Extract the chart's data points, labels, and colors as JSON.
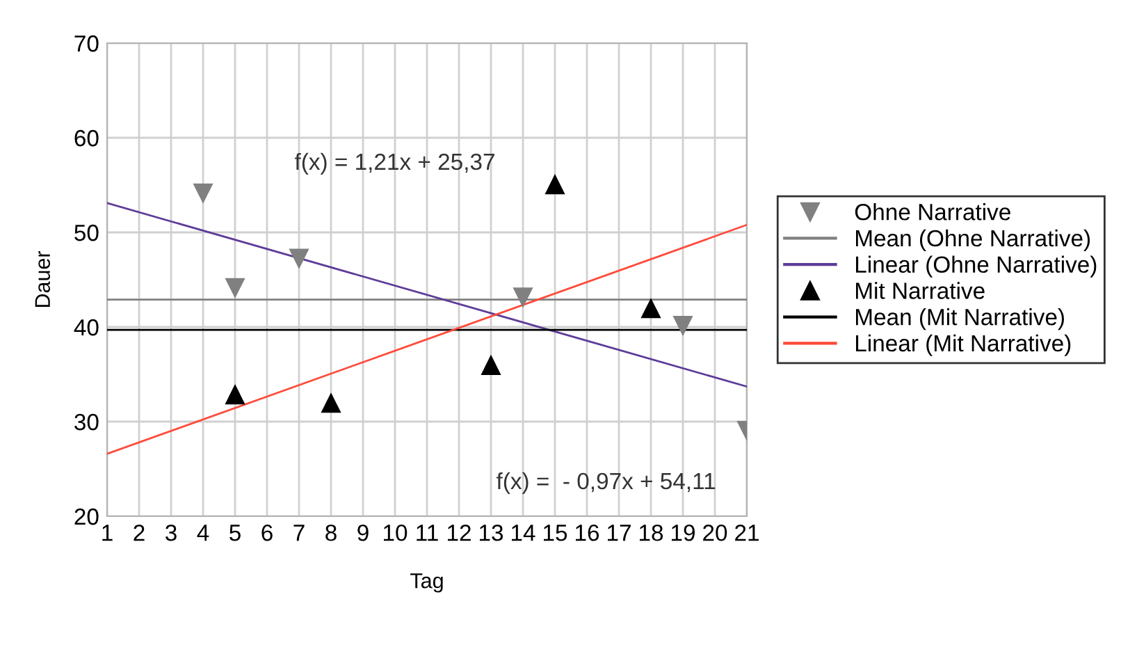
{
  "chart_data": {
    "type": "scatter",
    "xlabel": "Tag",
    "ylabel": "Dauer",
    "xlim": [
      1,
      21
    ],
    "xticks": [
      1,
      2,
      3,
      4,
      5,
      6,
      7,
      8,
      9,
      10,
      11,
      12,
      13,
      14,
      15,
      16,
      17,
      18,
      19,
      20,
      21
    ],
    "ylim": [
      20,
      70
    ],
    "yticks": [
      20,
      30,
      40,
      50,
      60,
      70
    ],
    "grid": true,
    "legend": "right",
    "series": [
      {
        "name": "Ohne Narrative",
        "marker": "triangle_down",
        "color": "#808080",
        "x": [
          4,
          5,
          7,
          14,
          19,
          21
        ],
        "values": [
          54.1,
          44.1,
          47.2,
          43.1,
          40.1,
          29.0
        ]
      },
      {
        "name": "Mean (Ohne Narrative)",
        "type": "line",
        "color": "#808080",
        "x": [
          1,
          21
        ],
        "values": [
          42.9,
          42.9
        ]
      },
      {
        "name": "Linear (Ohne Narrative)",
        "type": "line",
        "color": "#5e3c99",
        "x": [
          1,
          21
        ],
        "values": [
          53.1,
          33.7
        ]
      },
      {
        "name": "Mit Narrative",
        "marker": "triangle",
        "color": "#000000",
        "x": [
          5,
          8,
          13,
          15,
          18
        ],
        "values": [
          32.9,
          32.0,
          36.0,
          55.1,
          42.0
        ]
      },
      {
        "name": "Mean (Mit Narrative)",
        "type": "line",
        "color": "#000000",
        "x": [
          1,
          21
        ],
        "values": [
          39.7,
          39.7
        ]
      },
      {
        "name": "Linear (Mit Narrative)",
        "type": "line",
        "color": "#ff4a3a",
        "x": [
          1,
          21
        ],
        "values": [
          26.6,
          50.8
        ]
      }
    ],
    "annotations": [
      "f(x) = 1,21x + 25,37",
      "f(x) =  - 0,97x + 54,11"
    ]
  }
}
